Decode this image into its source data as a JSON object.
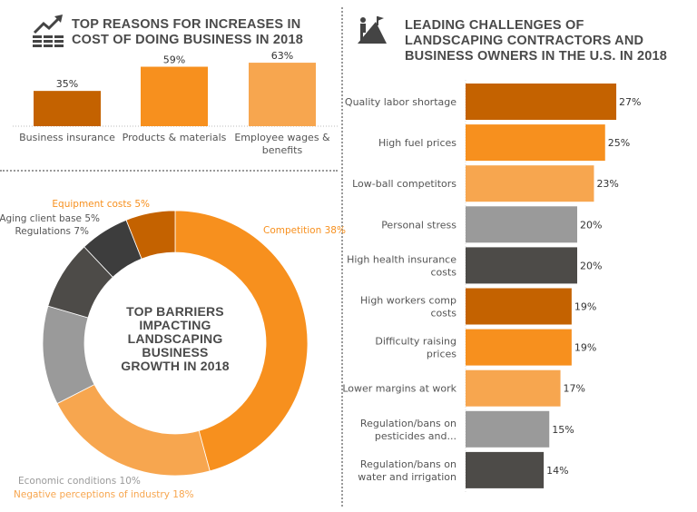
{
  "colors": {
    "dark_orange": "#C46200",
    "orange": "#F7901E",
    "light_orange": "#F7A64F",
    "gray": "#9A9A9A",
    "dark_gray": "#4D4B48",
    "darker_gray": "#3D3D3D"
  },
  "icons": {
    "cost": "rising-chart-coins-icon",
    "challenge": "climber-flag-icon"
  },
  "chart_data": [
    {
      "type": "bar",
      "title": "TOP REASONS FOR INCREASES IN COST OF DOING BUSINESS IN 2018",
      "categories": [
        "Business insurance",
        "Products & materials",
        "Employee wages & benefits"
      ],
      "values": [
        35,
        59,
        63
      ],
      "labels": [
        "35%",
        "59%",
        "63%"
      ],
      "unit": "%",
      "ylim": [
        0,
        70
      ],
      "colors": [
        "#C46200",
        "#F7901E",
        "#F7A64F"
      ]
    },
    {
      "type": "pie",
      "donut": true,
      "title": "TOP BARRIERS IMPACTING LANDSCAPING BUSINESS GROWTH IN 2018",
      "slices": [
        {
          "label": "Competition 38%",
          "value": 38,
          "color": "#F7901E"
        },
        {
          "label": "Negative perceptions of industry 18%",
          "value": 18,
          "color": "#F7A64F"
        },
        {
          "label": "Economic conditions 10%",
          "value": 10,
          "color": "#9A9A9A"
        },
        {
          "label": "Regulations 7%",
          "value": 7,
          "color": "#4D4B48"
        },
        {
          "label": "Aging client base 5%",
          "value": 5,
          "color": "#3D3D3D"
        },
        {
          "label": "Equipment costs 5%",
          "value": 5,
          "color": "#C46200"
        }
      ]
    },
    {
      "type": "bar",
      "orientation": "horizontal",
      "title": "LEADING CHALLENGES OF LANDSCAPING CONTRACTORS AND BUSINESS OWNERS IN THE U.S. IN 2018",
      "categories": [
        [
          "Quality labor shortage"
        ],
        [
          "High fuel prices"
        ],
        [
          "Low-ball competitors"
        ],
        [
          "Personal stress"
        ],
        [
          "High health insurance",
          "costs"
        ],
        [
          "High workers comp",
          "costs"
        ],
        [
          "Difficulty raising",
          "prices"
        ],
        [
          "Lower margins at work"
        ],
        [
          "Regulation/bans on",
          "pesticides and..."
        ],
        [
          "Regulation/bans on",
          "water and irrigation"
        ]
      ],
      "values": [
        27,
        25,
        23,
        20,
        20,
        19,
        19,
        17,
        15,
        14
      ],
      "labels": [
        "27%",
        "25%",
        "23%",
        "20%",
        "20%",
        "19%",
        "19%",
        "17%",
        "15%",
        "14%"
      ],
      "unit": "%",
      "colors": [
        "#C46200",
        "#F7901E",
        "#F7A64F",
        "#9A9A9A",
        "#4D4B48"
      ]
    }
  ]
}
